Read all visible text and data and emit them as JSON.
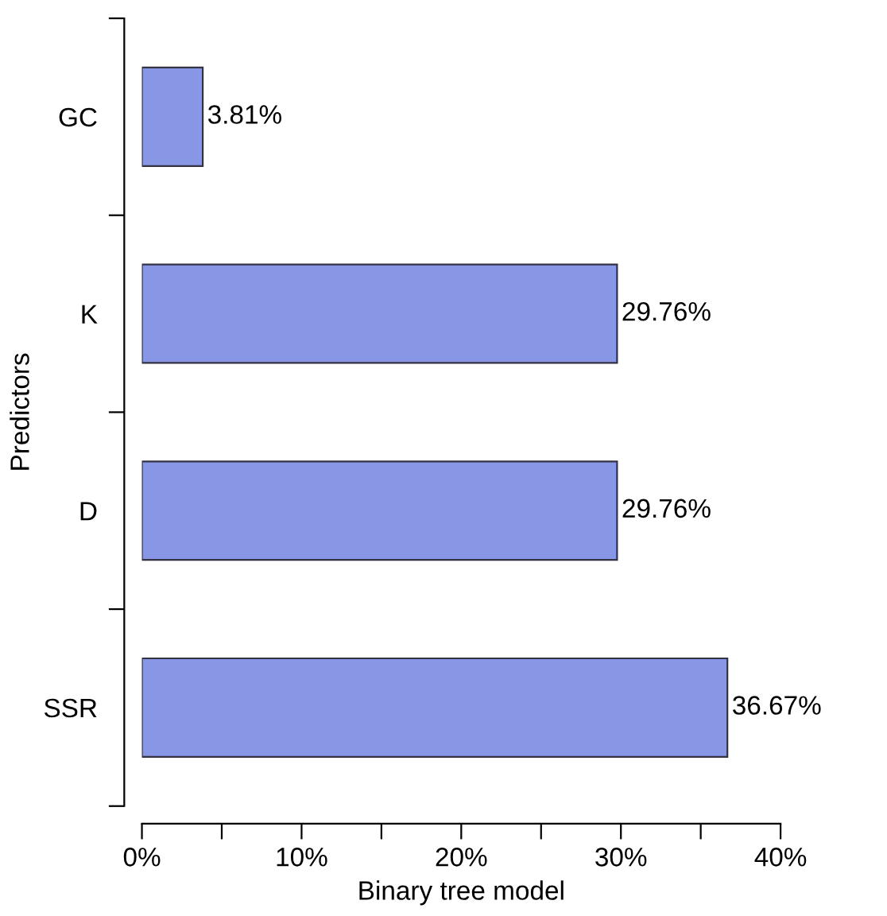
{
  "chart_data": {
    "type": "bar",
    "orientation": "horizontal",
    "xlabel": "Binary tree model",
    "ylabel": "Predictors",
    "categories": [
      "GC",
      "K",
      "D",
      "SSR"
    ],
    "values": [
      3.81,
      29.76,
      29.76,
      36.67
    ],
    "value_labels": [
      "3.81%",
      "29.76%",
      "29.76%",
      "36.67%"
    ],
    "color": "#8896e6",
    "xlim": [
      0,
      40
    ],
    "xticks": [
      {
        "value": 0,
        "label": "0%"
      },
      {
        "value": 5,
        "label": null
      },
      {
        "value": 10,
        "label": "10%"
      },
      {
        "value": 15,
        "label": null
      },
      {
        "value": 20,
        "label": "20%"
      },
      {
        "value": 25,
        "label": null
      },
      {
        "value": 30,
        "label": "30%"
      },
      {
        "value": 35,
        "label": null
      },
      {
        "value": 40,
        "label": "40%"
      }
    ],
    "grid": false,
    "legend": false
  }
}
